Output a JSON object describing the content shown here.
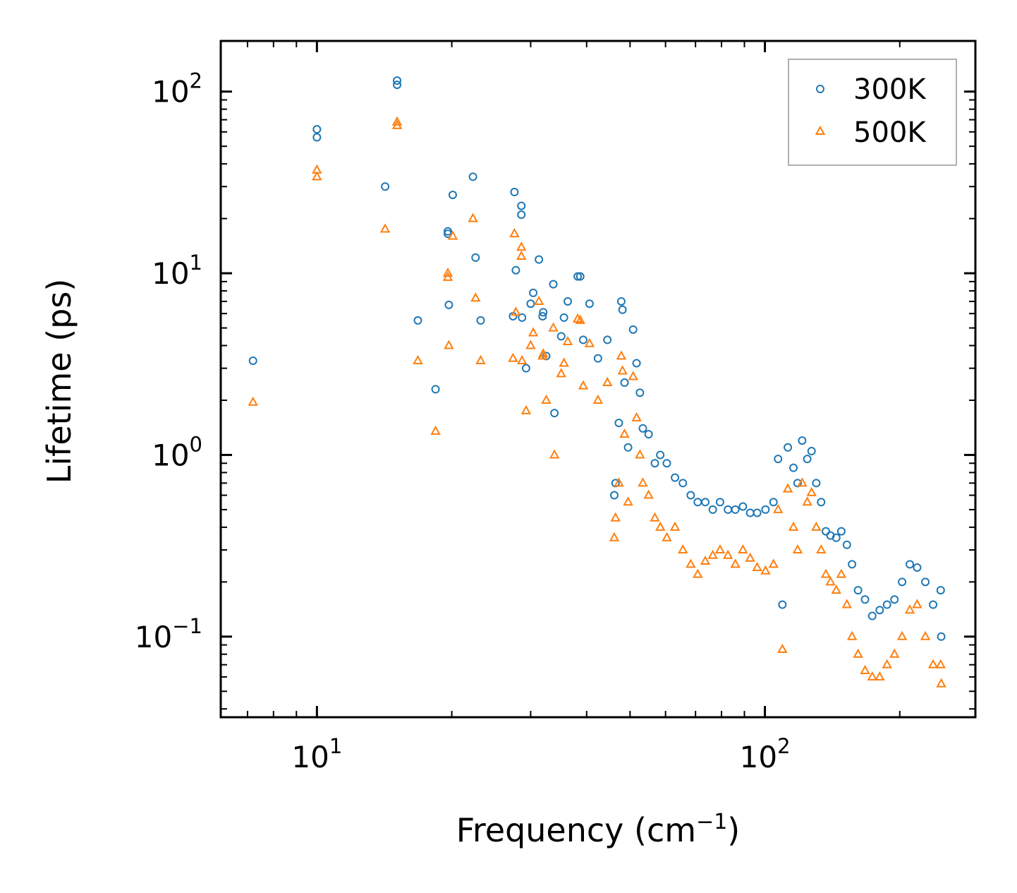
{
  "chart_data": {
    "type": "scatter",
    "xscale": "log",
    "yscale": "log",
    "xlabel": "Frequency (cm",
    "xlabel_sup": "−1",
    "xlabel_close": ")",
    "ylabel": "Lifetime (ps)",
    "xlim": [
      6.1,
      295
    ],
    "ylim": [
      0.036,
      190
    ],
    "x_ticks": [
      {
        "value": 10,
        "base": "10",
        "exp": "1"
      },
      {
        "value": 100,
        "base": "10",
        "exp": "2"
      }
    ],
    "y_ticks": [
      {
        "value": 0.1,
        "base": "10",
        "exp": "−1"
      },
      {
        "value": 1,
        "base": "10",
        "exp": "0"
      },
      {
        "value": 10,
        "base": "10",
        "exp": "1"
      },
      {
        "value": 100,
        "base": "10",
        "exp": "2"
      }
    ],
    "legend": {
      "position": "top-right"
    },
    "series": [
      {
        "name": "300K",
        "marker": "circle",
        "color": "#1f77b4",
        "sample_points": [
          [
            7.2,
            3.3
          ],
          [
            10,
            62
          ],
          [
            10,
            56
          ],
          [
            14.2,
            30
          ],
          [
            15.1,
            115
          ],
          [
            15.1,
            109
          ],
          [
            16.8,
            5.5
          ],
          [
            18.4,
            2.3
          ],
          [
            19.6,
            17
          ],
          [
            19.6,
            16.5
          ],
          [
            19.7,
            6.7
          ],
          [
            20.1,
            27
          ],
          [
            22.3,
            34
          ],
          [
            22.6,
            12.2
          ],
          [
            23.2,
            5.5
          ],
          [
            27.4,
            5.8
          ],
          [
            27.6,
            28
          ],
          [
            27.8,
            10.4
          ],
          [
            28.6,
            23.5
          ],
          [
            28.6,
            21
          ],
          [
            28.7,
            5.7
          ],
          [
            29.3,
            3.0
          ],
          [
            30,
            6.8
          ],
          [
            30.4,
            7.8
          ],
          [
            31.3,
            11.9
          ],
          [
            31.9,
            5.8
          ],
          [
            32,
            6.1
          ],
          [
            32.5,
            3.5
          ],
          [
            33.7,
            8.7
          ],
          [
            33.9,
            1.7
          ],
          [
            35.1,
            4.5
          ],
          [
            35.6,
            5.7
          ],
          [
            36.3,
            7.0
          ],
          [
            38.2,
            9.6
          ],
          [
            38.7,
            9.6
          ],
          [
            39.3,
            4.3
          ],
          [
            40.6,
            6.8
          ],
          [
            42.4,
            3.4
          ],
          [
            44.5,
            4.3
          ],
          [
            46.1,
            0.6
          ],
          [
            46.4,
            0.7
          ],
          [
            47.2,
            1.5
          ],
          [
            47.8,
            7.0
          ],
          [
            48.1,
            6.3
          ],
          [
            48.6,
            2.5
          ],
          [
            49.5,
            1.1
          ],
          [
            50.8,
            4.9
          ],
          [
            51.7,
            3.2
          ],
          [
            52.6,
            2.2
          ],
          [
            53.4,
            1.4
          ],
          [
            55,
            1.3
          ],
          [
            56.8,
            0.9
          ],
          [
            58.4,
            1.0
          ],
          [
            60.4,
            0.9
          ],
          [
            63,
            0.75
          ],
          [
            65.6,
            0.7
          ],
          [
            68.3,
            0.6
          ],
          [
            70.8,
            0.55
          ],
          [
            73.6,
            0.55
          ],
          [
            76.5,
            0.5
          ],
          [
            79.4,
            0.55
          ],
          [
            82.7,
            0.5
          ],
          [
            85.9,
            0.5
          ],
          [
            89.3,
            0.52
          ],
          [
            92.7,
            0.48
          ],
          [
            96.1,
            0.48
          ],
          [
            100.3,
            0.5
          ],
          [
            104.5,
            0.55
          ],
          [
            107,
            0.95
          ],
          [
            109.4,
            0.15
          ],
          [
            112.5,
            1.1
          ],
          [
            115.8,
            0.85
          ],
          [
            118.3,
            0.7
          ],
          [
            121.1,
            1.2
          ],
          [
            124.3,
            0.95
          ],
          [
            127.1,
            1.05
          ],
          [
            130.2,
            0.7
          ],
          [
            133.5,
            0.55
          ],
          [
            136.8,
            0.38
          ],
          [
            140.1,
            0.36
          ],
          [
            144.3,
            0.35
          ],
          [
            148.1,
            0.38
          ],
          [
            152.4,
            0.32
          ],
          [
            156.5,
            0.25
          ],
          [
            161.4,
            0.18
          ],
          [
            167.3,
            0.16
          ],
          [
            173.6,
            0.13
          ],
          [
            180.4,
            0.14
          ],
          [
            187.3,
            0.15
          ],
          [
            194.6,
            0.16
          ],
          [
            202.4,
            0.2
          ],
          [
            210.6,
            0.25
          ],
          [
            218.7,
            0.24
          ],
          [
            228.1,
            0.2
          ],
          [
            237.4,
            0.15
          ],
          [
            246.8,
            0.18
          ],
          [
            247.5,
            0.1
          ]
        ]
      },
      {
        "name": "500K",
        "marker": "triangle",
        "color": "#ff7f0e",
        "sample_points": [
          [
            7.2,
            1.95
          ],
          [
            10,
            37
          ],
          [
            10,
            34
          ],
          [
            14.2,
            17.5
          ],
          [
            15.1,
            68
          ],
          [
            15.1,
            65
          ],
          [
            16.8,
            3.3
          ],
          [
            18.4,
            1.35
          ],
          [
            19.6,
            10
          ],
          [
            19.6,
            9.5
          ],
          [
            19.7,
            4.0
          ],
          [
            20.1,
            16
          ],
          [
            22.3,
            20
          ],
          [
            22.6,
            7.3
          ],
          [
            23.2,
            3.3
          ],
          [
            27.4,
            3.4
          ],
          [
            27.6,
            16.5
          ],
          [
            27.8,
            6.1
          ],
          [
            28.6,
            13.9
          ],
          [
            28.6,
            12.4
          ],
          [
            28.7,
            3.3
          ],
          [
            29.3,
            1.75
          ],
          [
            30,
            4.0
          ],
          [
            30.4,
            4.7
          ],
          [
            31.3,
            7.0
          ],
          [
            31.9,
            3.5
          ],
          [
            32,
            3.6
          ],
          [
            32.5,
            2.0
          ],
          [
            33.7,
            5.0
          ],
          [
            33.9,
            1.0
          ],
          [
            35.1,
            2.8
          ],
          [
            35.6,
            3.2
          ],
          [
            36.3,
            4.2
          ],
          [
            38.2,
            5.6
          ],
          [
            38.7,
            5.5
          ],
          [
            39.3,
            2.4
          ],
          [
            40.6,
            4.1
          ],
          [
            42.4,
            2.0
          ],
          [
            44.5,
            2.5
          ],
          [
            46.1,
            0.35
          ],
          [
            46.4,
            0.45
          ],
          [
            47.2,
            0.7
          ],
          [
            47.8,
            3.5
          ],
          [
            48.1,
            2.9
          ],
          [
            48.6,
            1.3
          ],
          [
            49.5,
            0.55
          ],
          [
            50.8,
            2.7
          ],
          [
            51.7,
            1.6
          ],
          [
            52.6,
            1.0
          ],
          [
            53.4,
            0.7
          ],
          [
            55,
            0.6
          ],
          [
            56.8,
            0.45
          ],
          [
            58.4,
            0.4
          ],
          [
            60.4,
            0.35
          ],
          [
            63,
            0.4
          ],
          [
            65.6,
            0.3
          ],
          [
            68.3,
            0.25
          ],
          [
            70.8,
            0.22
          ],
          [
            73.6,
            0.26
          ],
          [
            76.5,
            0.28
          ],
          [
            79.4,
            0.3
          ],
          [
            82.7,
            0.28
          ],
          [
            85.9,
            0.25
          ],
          [
            89.3,
            0.3
          ],
          [
            92.7,
            0.27
          ],
          [
            96.1,
            0.24
          ],
          [
            100.3,
            0.23
          ],
          [
            104.5,
            0.25
          ],
          [
            107,
            0.5
          ],
          [
            109.4,
            0.085
          ],
          [
            112.5,
            0.65
          ],
          [
            115.8,
            0.4
          ],
          [
            118.3,
            0.3
          ],
          [
            121.1,
            0.7
          ],
          [
            124.3,
            0.55
          ],
          [
            127.1,
            0.62
          ],
          [
            130.2,
            0.4
          ],
          [
            133.5,
            0.3
          ],
          [
            136.8,
            0.22
          ],
          [
            140.1,
            0.2
          ],
          [
            144.3,
            0.18
          ],
          [
            148.1,
            0.22
          ],
          [
            152.4,
            0.15
          ],
          [
            156.5,
            0.1
          ],
          [
            161.4,
            0.08
          ],
          [
            167.3,
            0.065
          ],
          [
            173.6,
            0.06
          ],
          [
            180.4,
            0.06
          ],
          [
            187.3,
            0.07
          ],
          [
            194.6,
            0.08
          ],
          [
            202.4,
            0.1
          ],
          [
            210.6,
            0.14
          ],
          [
            218.7,
            0.15
          ],
          [
            228.1,
            0.1
          ],
          [
            237.4,
            0.07
          ],
          [
            246.8,
            0.07
          ],
          [
            247.5,
            0.055
          ]
        ]
      }
    ]
  }
}
